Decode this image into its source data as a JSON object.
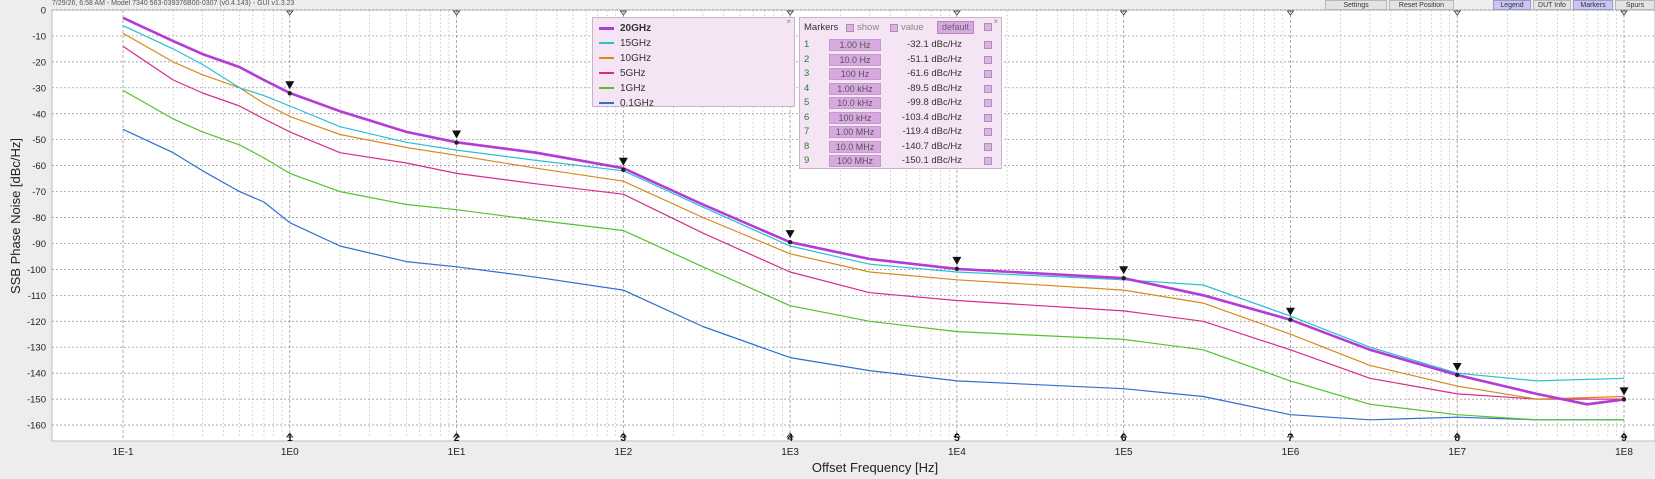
{
  "header": {
    "info": "7/29/26, 6:58 AM - Model 7340 563-039376B00-0307 (v0.4.143) - GUI v1.3.23",
    "buttons": [
      {
        "label": "Settings",
        "active": false
      },
      {
        "label": "Reset Position",
        "active": false
      },
      {
        "label": "Legend",
        "active": true
      },
      {
        "label": "DUT Info",
        "active": false
      },
      {
        "label": "Markers",
        "active": true
      },
      {
        "label": "Spurs",
        "active": false
      }
    ]
  },
  "legend": {
    "items": [
      {
        "label": "20GHz",
        "color": "#b43bd6",
        "bold": true
      },
      {
        "label": "15GHz",
        "color": "#2bbfd0",
        "bold": false
      },
      {
        "label": "10GHz",
        "color": "#d68a1e",
        "bold": false
      },
      {
        "label": "5GHz",
        "color": "#d62d8c",
        "bold": false
      },
      {
        "label": "1GHz",
        "color": "#55c12c",
        "bold": false
      },
      {
        "label": "0.1GHz",
        "color": "#2f6fd0",
        "bold": false
      }
    ]
  },
  "markers_panel": {
    "title": "Markers",
    "show_label": "show",
    "value_label": "value",
    "default_label": "default",
    "rows": [
      {
        "idx": "1",
        "freq": "1.00 Hz",
        "value": "-32.1 dBc/Hz"
      },
      {
        "idx": "2",
        "freq": "10.0 Hz",
        "value": "-51.1 dBc/Hz"
      },
      {
        "idx": "3",
        "freq": "100 Hz",
        "value": "-61.6 dBc/Hz"
      },
      {
        "idx": "4",
        "freq": "1.00 kHz",
        "value": "-89.5 dBc/Hz"
      },
      {
        "idx": "5",
        "freq": "10.0 kHz",
        "value": "-99.8 dBc/Hz"
      },
      {
        "idx": "6",
        "freq": "100 kHz",
        "value": "-103.4 dBc/Hz"
      },
      {
        "idx": "7",
        "freq": "1.00 MHz",
        "value": "-119.4 dBc/Hz"
      },
      {
        "idx": "8",
        "freq": "10.0 MHz",
        "value": "-140.7 dBc/Hz"
      },
      {
        "idx": "9",
        "freq": "100 MHz",
        "value": "-150.1 dBc/Hz"
      }
    ]
  },
  "chart_data": {
    "type": "line",
    "title": "",
    "xlabel": "Offset Frequency [Hz]",
    "ylabel": "SSB Phase Noise [dBc/Hz]",
    "x_scale": "log",
    "xlim": [
      0.1,
      100000000
    ],
    "ylim": [
      -165,
      0
    ],
    "x_ticks": [
      {
        "value": 0.1,
        "label": "1E-1"
      },
      {
        "value": 1,
        "label": "1E0"
      },
      {
        "value": 10,
        "label": "1E1"
      },
      {
        "value": 100,
        "label": "1E2"
      },
      {
        "value": 1000,
        "label": "1E3"
      },
      {
        "value": 10000,
        "label": "1E4"
      },
      {
        "value": 100000,
        "label": "1E5"
      },
      {
        "value": 1000000,
        "label": "1E6"
      },
      {
        "value": 10000000,
        "label": "1E7"
      },
      {
        "value": 100000000,
        "label": "1E8"
      }
    ],
    "y_ticks": [
      0,
      -10,
      -20,
      -30,
      -40,
      -50,
      -60,
      -70,
      -80,
      -90,
      -100,
      -110,
      -120,
      -130,
      -140,
      -150,
      -160
    ],
    "y_tick_labels": [
      "0",
      "-10",
      "-20",
      "-30",
      "-40",
      "-50",
      "-60",
      "-70",
      "-80",
      "-90",
      "-100",
      "-110",
      "-120",
      "-130",
      "-140",
      "-150",
      "-160"
    ],
    "grid": true,
    "legend_position": "top-center",
    "series": [
      {
        "name": "20GHz",
        "color": "#b43bd6",
        "points": [
          [
            0.1,
            -3
          ],
          [
            0.2,
            -12
          ],
          [
            0.3,
            -17
          ],
          [
            0.5,
            -22
          ],
          [
            0.7,
            -27
          ],
          [
            1,
            -32
          ],
          [
            2,
            -39
          ],
          [
            5,
            -47
          ],
          [
            10,
            -51
          ],
          [
            30,
            -55
          ],
          [
            100,
            -61
          ],
          [
            300,
            -75
          ],
          [
            1000,
            -89.5
          ],
          [
            3000,
            -96
          ],
          [
            10000,
            -99.8
          ],
          [
            100000,
            -103.4
          ],
          [
            300000,
            -110
          ],
          [
            1000000,
            -119.4
          ],
          [
            3000000,
            -131
          ],
          [
            10000000,
            -140.7
          ],
          [
            30000000,
            -148
          ],
          [
            60000000,
            -152
          ],
          [
            100000000,
            -150.1
          ]
        ]
      },
      {
        "name": "15GHz",
        "color": "#2bbfd0",
        "points": [
          [
            0.1,
            -6
          ],
          [
            0.2,
            -15
          ],
          [
            0.3,
            -21
          ],
          [
            0.5,
            -30
          ],
          [
            0.7,
            -33
          ],
          [
            1,
            -37
          ],
          [
            2,
            -45
          ],
          [
            5,
            -51
          ],
          [
            10,
            -54
          ],
          [
            30,
            -58
          ],
          [
            100,
            -62
          ],
          [
            300,
            -76
          ],
          [
            1000,
            -91
          ],
          [
            3000,
            -98
          ],
          [
            10000,
            -101
          ],
          [
            100000,
            -104
          ],
          [
            300000,
            -106
          ],
          [
            1000000,
            -118
          ],
          [
            3000000,
            -130
          ],
          [
            10000000,
            -140
          ],
          [
            30000000,
            -143
          ],
          [
            100000000,
            -142
          ]
        ]
      },
      {
        "name": "10GHz",
        "color": "#d68a1e",
        "points": [
          [
            0.1,
            -9
          ],
          [
            0.2,
            -20
          ],
          [
            0.3,
            -25
          ],
          [
            0.5,
            -30
          ],
          [
            0.7,
            -36
          ],
          [
            1,
            -41
          ],
          [
            2,
            -48
          ],
          [
            5,
            -53
          ],
          [
            10,
            -56
          ],
          [
            30,
            -61
          ],
          [
            100,
            -66
          ],
          [
            300,
            -80
          ],
          [
            1000,
            -94
          ],
          [
            3000,
            -101
          ],
          [
            10000,
            -104
          ],
          [
            100000,
            -108
          ],
          [
            300000,
            -113
          ],
          [
            1000000,
            -125
          ],
          [
            3000000,
            -137
          ],
          [
            10000000,
            -145
          ],
          [
            30000000,
            -150
          ],
          [
            100000000,
            -149
          ]
        ]
      },
      {
        "name": "5GHz",
        "color": "#d62d8c",
        "points": [
          [
            0.1,
            -14
          ],
          [
            0.2,
            -27
          ],
          [
            0.3,
            -32
          ],
          [
            0.5,
            -37
          ],
          [
            0.7,
            -42
          ],
          [
            1,
            -47
          ],
          [
            2,
            -55
          ],
          [
            5,
            -59
          ],
          [
            10,
            -63
          ],
          [
            30,
            -67
          ],
          [
            100,
            -71
          ],
          [
            300,
            -86
          ],
          [
            1000,
            -101
          ],
          [
            3000,
            -109
          ],
          [
            10000,
            -112
          ],
          [
            100000,
            -116
          ],
          [
            300000,
            -120
          ],
          [
            1000000,
            -131
          ],
          [
            3000000,
            -142
          ],
          [
            10000000,
            -148
          ],
          [
            30000000,
            -150
          ],
          [
            100000000,
            -150
          ]
        ]
      },
      {
        "name": "1GHz",
        "color": "#55c12c",
        "points": [
          [
            0.1,
            -31
          ],
          [
            0.2,
            -42
          ],
          [
            0.3,
            -47
          ],
          [
            0.5,
            -52
          ],
          [
            0.7,
            -57
          ],
          [
            1,
            -63
          ],
          [
            2,
            -70
          ],
          [
            5,
            -75
          ],
          [
            10,
            -77
          ],
          [
            30,
            -81
          ],
          [
            100,
            -85
          ],
          [
            300,
            -99
          ],
          [
            1000,
            -114
          ],
          [
            3000,
            -120
          ],
          [
            10000,
            -124
          ],
          [
            100000,
            -127
          ],
          [
            300000,
            -131
          ],
          [
            1000000,
            -143
          ],
          [
            3000000,
            -152
          ],
          [
            10000000,
            -156
          ],
          [
            30000000,
            -158
          ],
          [
            100000000,
            -158
          ]
        ]
      },
      {
        "name": "0.1GHz",
        "color": "#2f6fd0",
        "points": [
          [
            0.1,
            -46
          ],
          [
            0.2,
            -55
          ],
          [
            0.3,
            -62
          ],
          [
            0.5,
            -70
          ],
          [
            0.7,
            -74
          ],
          [
            1,
            -82
          ],
          [
            2,
            -91
          ],
          [
            5,
            -97
          ],
          [
            10,
            -99
          ],
          [
            30,
            -103
          ],
          [
            100,
            -108
          ],
          [
            300,
            -122
          ],
          [
            1000,
            -134
          ],
          [
            3000,
            -139
          ],
          [
            10000,
            -143
          ],
          [
            100000,
            -146
          ],
          [
            300000,
            -149
          ],
          [
            1000000,
            -156
          ],
          [
            3000000,
            -158
          ],
          [
            10000000,
            -157
          ],
          [
            30000000,
            -158
          ],
          [
            100000000,
            -158
          ]
        ]
      }
    ],
    "markers": [
      {
        "label": "1",
        "x": 1,
        "y": -32.1
      },
      {
        "label": "2",
        "x": 10,
        "y": -51.1
      },
      {
        "label": "3",
        "x": 100,
        "y": -61.6
      },
      {
        "label": "4",
        "x": 1000,
        "y": -89.5
      },
      {
        "label": "5",
        "x": 10000,
        "y": -99.8
      },
      {
        "label": "6",
        "x": 100000,
        "y": -103.4
      },
      {
        "label": "7",
        "x": 1000000,
        "y": -119.4
      },
      {
        "label": "8",
        "x": 10000000,
        "y": -140.7
      },
      {
        "label": "9",
        "x": 100000000,
        "y": -150.1
      }
    ]
  }
}
